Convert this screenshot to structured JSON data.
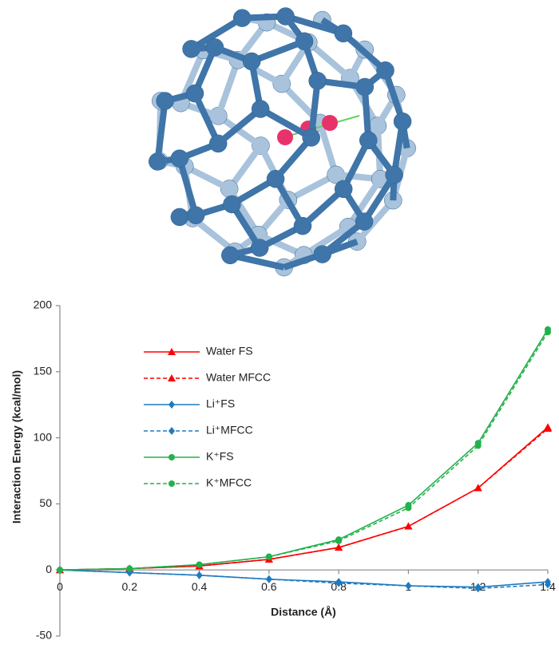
{
  "chart_data": {
    "type": "line",
    "x": [
      0,
      0.2,
      0.4,
      0.6,
      0.8,
      1,
      1.2,
      1.4
    ],
    "x_label": "Distance (Å)",
    "y_label": "Interaction Energy (kcal/mol)",
    "xlim": [
      0,
      1.4
    ],
    "xticks": [
      0,
      0.2,
      0.4,
      0.6,
      0.8,
      1,
      1.2,
      1.4
    ],
    "ylim": [
      -50,
      200
    ],
    "yticks": [
      -50,
      0,
      50,
      100,
      150,
      200
    ],
    "grid": false,
    "legend": "upper left",
    "series": [
      {
        "name": "Water FS",
        "color": "#ff0000",
        "dashed": false,
        "marker": "triangle",
        "values": [
          0,
          1,
          3,
          8,
          17,
          33,
          62,
          108
        ]
      },
      {
        "name": "Water MFCC",
        "color": "#ff0000",
        "dashed": true,
        "marker": "triangle",
        "values": [
          0,
          1,
          3,
          8,
          17,
          33,
          62,
          107
        ]
      },
      {
        "name": "Li⁺FS",
        "color": "#1f7bc0",
        "dashed": false,
        "marker": "diamond",
        "values": [
          0,
          -2,
          -4,
          -7,
          -9,
          -12,
          -13,
          -9
        ]
      },
      {
        "name": "Li⁺MFCC",
        "color": "#1f7bc0",
        "dashed": true,
        "marker": "diamond",
        "values": [
          0,
          -2,
          -4,
          -7,
          -10,
          -12,
          -14,
          -11
        ]
      },
      {
        "name": "K⁺FS",
        "color": "#22b14c",
        "dashed": false,
        "marker": "circle",
        "values": [
          0,
          1,
          4,
          10,
          23,
          49,
          96,
          182
        ]
      },
      {
        "name": "K⁺MFCC",
        "color": "#22b14c",
        "dashed": true,
        "marker": "circle",
        "values": [
          0,
          1,
          4,
          10,
          22,
          47,
          94,
          180
        ]
      }
    ]
  }
}
